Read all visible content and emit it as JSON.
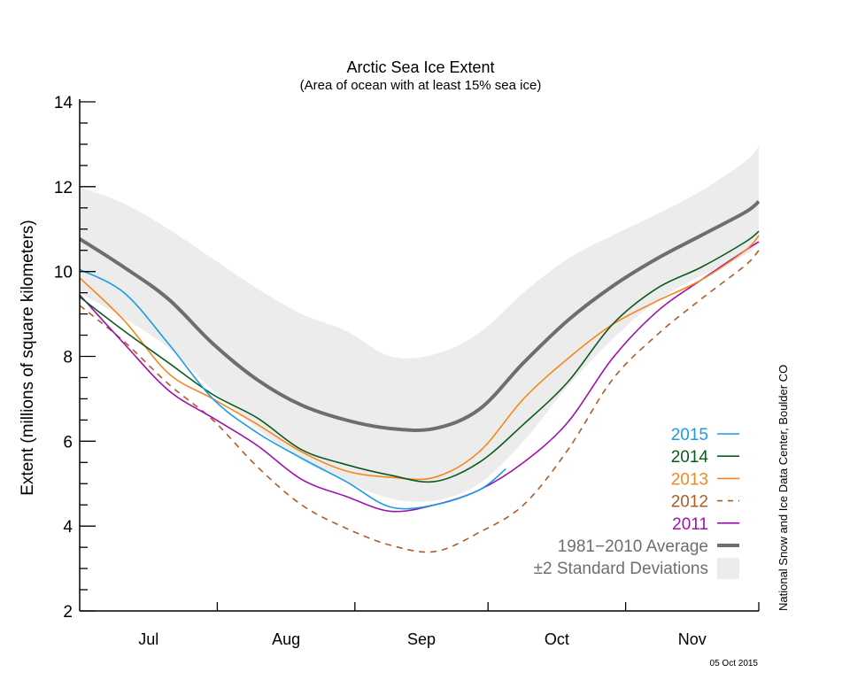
{
  "chart_data": {
    "type": "line",
    "title": "Arctic Sea Ice Extent",
    "subtitle": "(Area of ocean with at least 15% sea ice)",
    "ylabel": "Extent (millions of square kilometers)",
    "xlabel": "",
    "ylim": [
      2,
      14
    ],
    "yticks": [
      2,
      4,
      6,
      8,
      10,
      12,
      14
    ],
    "x_units": "days since 1 Jul",
    "xlim": [
      0,
      153
    ],
    "month_boundaries": [
      31,
      62,
      92,
      123,
      153
    ],
    "month_labels": [
      {
        "label": "Jul",
        "center": 15.5
      },
      {
        "label": "Aug",
        "center": 46.5
      },
      {
        "label": "Sep",
        "center": 77
      },
      {
        "label": "Oct",
        "center": 107.5
      },
      {
        "label": "Nov",
        "center": 138
      }
    ],
    "x": [
      0,
      10,
      20,
      30,
      40,
      50,
      60,
      70,
      80,
      90,
      100,
      110,
      120,
      130,
      140,
      150,
      153
    ],
    "band": {
      "name": "±2 Standard Deviations",
      "upper": [
        12.0,
        11.6,
        11.0,
        10.3,
        9.6,
        9.0,
        8.6,
        8.0,
        8.05,
        8.55,
        9.5,
        10.3,
        10.85,
        11.35,
        11.9,
        12.6,
        12.95
      ],
      "lower": [
        9.5,
        8.9,
        8.2,
        7.2,
        6.3,
        5.55,
        5.05,
        4.65,
        4.6,
        5.0,
        6.0,
        7.3,
        8.4,
        9.3,
        9.9,
        10.4,
        10.65
      ],
      "color": "#ececec"
    },
    "series": [
      {
        "name": "1981−2010 Average",
        "color": "#6e6e6e",
        "style": "thick",
        "values": [
          10.77,
          10.1,
          9.35,
          8.3,
          7.45,
          6.85,
          6.5,
          6.3,
          6.3,
          6.75,
          7.85,
          8.85,
          9.65,
          10.3,
          10.85,
          11.4,
          11.65
        ]
      },
      {
        "name": "2012",
        "color": "#b05a25",
        "style": "dashed",
        "values": [
          9.2,
          8.35,
          7.35,
          6.5,
          5.4,
          4.5,
          3.95,
          3.55,
          3.4,
          3.85,
          4.5,
          5.8,
          7.45,
          8.5,
          9.35,
          10.15,
          10.5
        ]
      },
      {
        "name": "2011",
        "color": "#a010b0",
        "style": "solid",
        "values": [
          9.45,
          8.3,
          7.2,
          6.55,
          5.9,
          5.1,
          4.7,
          4.35,
          4.5,
          4.85,
          5.5,
          6.45,
          7.95,
          9.05,
          9.8,
          10.5,
          10.7
        ]
      },
      {
        "name": "2013",
        "color": "#f5871f",
        "style": "solid",
        "values": [
          9.85,
          8.85,
          7.6,
          7.0,
          6.4,
          5.75,
          5.3,
          5.15,
          5.15,
          5.75,
          7.0,
          7.95,
          8.75,
          9.3,
          9.8,
          10.5,
          10.85
        ]
      },
      {
        "name": "2014",
        "color": "#0c5a1e",
        "style": "solid",
        "values": [
          9.4,
          8.6,
          7.85,
          7.1,
          6.55,
          5.8,
          5.45,
          5.2,
          5.05,
          5.5,
          6.4,
          7.4,
          8.75,
          9.6,
          10.1,
          10.7,
          10.95
        ]
      },
      {
        "name": "2015",
        "color": "#1c9be8",
        "style": "solid",
        "x": [
          0,
          10,
          20,
          30,
          40,
          50,
          60,
          70,
          80,
          90,
          96
        ],
        "values": [
          10.05,
          9.5,
          8.3,
          7.0,
          6.2,
          5.6,
          5.05,
          4.45,
          4.5,
          4.85,
          5.35
        ]
      }
    ],
    "legend": {
      "placement": "bottom-right",
      "entries": [
        {
          "label": "2015",
          "color": "#1c9be8",
          "style": "solid"
        },
        {
          "label": "2014",
          "color": "#0c5a1e",
          "style": "solid"
        },
        {
          "label": "2013",
          "color": "#f5871f",
          "style": "solid"
        },
        {
          "label": "2012",
          "color": "#b05a25",
          "style": "dashed"
        },
        {
          "label": "2011",
          "color": "#a010b0",
          "style": "solid"
        },
        {
          "label": "1981−2010 Average",
          "color": "#6e6e6e",
          "style": "thick"
        },
        {
          "label": "±2 Standard Deviations",
          "color": "#ececec",
          "style": "box"
        }
      ]
    },
    "grid": false
  },
  "credit": "National Snow and Ice Data Center, Boulder CO",
  "date": "05 Oct 2015"
}
